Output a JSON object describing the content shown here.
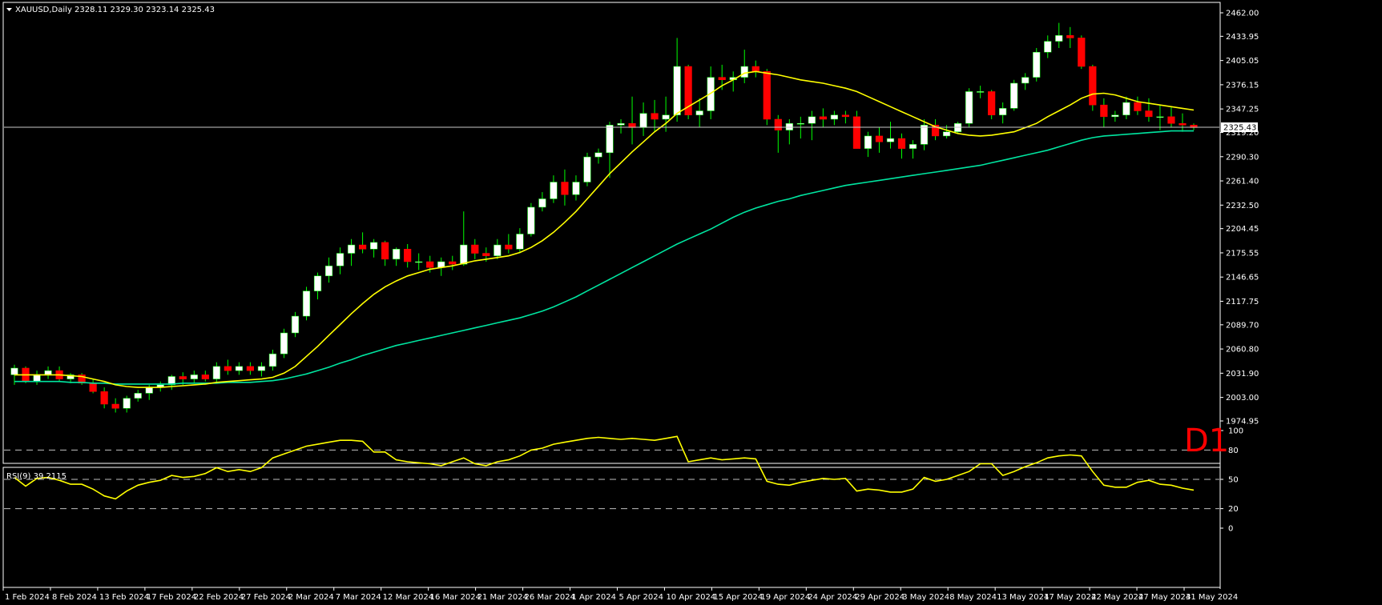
{
  "header": {
    "symbol": "XAUUSD,Daily",
    "ohlc": "2328.11 2329.30 2323.14 2325.43"
  },
  "timeframe_badge": "D1",
  "current_price_label": "2325.43",
  "colors": {
    "background": "#000000",
    "up_candle": "#ffffff",
    "down_candle": "#ff0000",
    "wick": "#00ff00",
    "ma_fast": "#ffff00",
    "ma_slow": "#00e5a0",
    "rsi": "#ffff00",
    "grid_dash": "#c0c0c0",
    "badge": "#ff0000"
  },
  "chart_data": [
    {
      "type": "candlestick",
      "title": "",
      "ylim": [
        1974.95,
        2462.0
      ],
      "yticks": [
        "2462.00",
        "2433.95",
        "2405.05",
        "2376.15",
        "2347.25",
        "2319.20",
        "2290.30",
        "2261.40",
        "2232.50",
        "2204.45",
        "2175.55",
        "2146.65",
        "2117.75",
        "2089.70",
        "2060.80",
        "2031.90",
        "2003.00",
        "1974.95"
      ],
      "xticks": [
        "1 Feb 2024",
        "8 Feb 2024",
        "13 Feb 2024",
        "17 Feb 2024",
        "22 Feb 2024",
        "27 Feb 2024",
        "2 Mar 2024",
        "7 Mar 2024",
        "12 Mar 2024",
        "16 Mar 2024",
        "21 Mar 2024",
        "26 Mar 2024",
        "1 Apr 2024",
        "5 Apr 2024",
        "10 Apr 2024",
        "15 Apr 2024",
        "19 Apr 2024",
        "24 Apr 2024",
        "29 Apr 2024",
        "3 May 2024",
        "8 May 2024",
        "13 May 2024",
        "17 May 2024",
        "22 May 2024",
        "27 May 2024",
        "31 May 2024"
      ],
      "current_price": 2325.43,
      "ohlc": [
        [
          2030,
          2042,
          2018,
          2038
        ],
        [
          2038,
          2040,
          2020,
          2022
        ],
        [
          2022,
          2035,
          2018,
          2030
        ],
        [
          2030,
          2040,
          2025,
          2035
        ],
        [
          2035,
          2040,
          2022,
          2025
        ],
        [
          2025,
          2032,
          2020,
          2030
        ],
        [
          2030,
          2032,
          2018,
          2020
        ],
        [
          2020,
          2025,
          2008,
          2010
        ],
        [
          2010,
          2015,
          1990,
          1995
        ],
        [
          1995,
          2002,
          1985,
          1990
        ],
        [
          1990,
          2005,
          1985,
          2002
        ],
        [
          2002,
          2012,
          1998,
          2008
        ],
        [
          2008,
          2018,
          2000,
          2015
        ],
        [
          2015,
          2022,
          2010,
          2018
        ],
        [
          2018,
          2030,
          2012,
          2028
        ],
        [
          2028,
          2033,
          2018,
          2025
        ],
        [
          2025,
          2035,
          2020,
          2030
        ],
        [
          2030,
          2035,
          2022,
          2025
        ],
        [
          2025,
          2045,
          2020,
          2040
        ],
        [
          2040,
          2048,
          2030,
          2035
        ],
        [
          2035,
          2045,
          2030,
          2040
        ],
        [
          2040,
          2045,
          2030,
          2035
        ],
        [
          2035,
          2045,
          2028,
          2040
        ],
        [
          2040,
          2060,
          2035,
          2055
        ],
        [
          2055,
          2085,
          2050,
          2080
        ],
        [
          2080,
          2105,
          2075,
          2100
        ],
        [
          2100,
          2135,
          2095,
          2130
        ],
        [
          2130,
          2152,
          2120,
          2148
        ],
        [
          2148,
          2170,
          2140,
          2160
        ],
        [
          2160,
          2182,
          2150,
          2175
        ],
        [
          2175,
          2192,
          2160,
          2185
        ],
        [
          2185,
          2200,
          2175,
          2180
        ],
        [
          2180,
          2192,
          2170,
          2188
        ],
        [
          2188,
          2190,
          2160,
          2168
        ],
        [
          2168,
          2182,
          2160,
          2180
        ],
        [
          2180,
          2186,
          2158,
          2165
        ],
        [
          2165,
          2175,
          2155,
          2165
        ],
        [
          2165,
          2172,
          2152,
          2158
        ],
        [
          2158,
          2170,
          2148,
          2165
        ],
        [
          2165,
          2172,
          2155,
          2162
        ],
        [
          2162,
          2225,
          2160,
          2185
        ],
        [
          2185,
          2192,
          2168,
          2175
        ],
        [
          2175,
          2182,
          2165,
          2172
        ],
        [
          2172,
          2192,
          2168,
          2185
        ],
        [
          2185,
          2198,
          2175,
          2180
        ],
        [
          2180,
          2205,
          2175,
          2198
        ],
        [
          2198,
          2235,
          2195,
          2230
        ],
        [
          2230,
          2248,
          2225,
          2240
        ],
        [
          2240,
          2268,
          2235,
          2260
        ],
        [
          2260,
          2275,
          2232,
          2245
        ],
        [
          2245,
          2268,
          2238,
          2260
        ],
        [
          2260,
          2295,
          2255,
          2290
        ],
        [
          2290,
          2300,
          2282,
          2295
        ],
        [
          2295,
          2332,
          2265,
          2328
        ],
        [
          2328,
          2335,
          2318,
          2330
        ],
        [
          2330,
          2362,
          2305,
          2325
        ],
        [
          2325,
          2355,
          2315,
          2342
        ],
        [
          2342,
          2358,
          2320,
          2335
        ],
        [
          2335,
          2362,
          2320,
          2340
        ],
        [
          2340,
          2432,
          2332,
          2398
        ],
        [
          2398,
          2400,
          2335,
          2340
        ],
        [
          2340,
          2360,
          2325,
          2345
        ],
        [
          2345,
          2398,
          2335,
          2385
        ],
        [
          2385,
          2400,
          2370,
          2382
        ],
        [
          2382,
          2392,
          2368,
          2385
        ],
        [
          2385,
          2418,
          2378,
          2398
        ],
        [
          2398,
          2405,
          2385,
          2392
        ],
        [
          2392,
          2395,
          2328,
          2335
        ],
        [
          2335,
          2340,
          2295,
          2322
        ],
        [
          2322,
          2335,
          2305,
          2330
        ],
        [
          2330,
          2338,
          2312,
          2330
        ],
        [
          2330,
          2345,
          2310,
          2338
        ],
        [
          2338,
          2348,
          2325,
          2335
        ],
        [
          2335,
          2345,
          2328,
          2340
        ],
        [
          2340,
          2345,
          2330,
          2338
        ],
        [
          2338,
          2345,
          2300,
          2300
        ],
        [
          2300,
          2320,
          2290,
          2315
        ],
        [
          2315,
          2325,
          2295,
          2308
        ],
        [
          2308,
          2332,
          2300,
          2312
        ],
        [
          2312,
          2318,
          2288,
          2300
        ],
        [
          2300,
          2310,
          2288,
          2305
        ],
        [
          2305,
          2335,
          2298,
          2328
        ],
        [
          2328,
          2335,
          2310,
          2315
        ],
        [
          2315,
          2328,
          2312,
          2320
        ],
        [
          2320,
          2332,
          2318,
          2330
        ],
        [
          2330,
          2372,
          2325,
          2368
        ],
        [
          2368,
          2375,
          2360,
          2368
        ],
        [
          2368,
          2370,
          2335,
          2340
        ],
        [
          2340,
          2355,
          2330,
          2348
        ],
        [
          2348,
          2382,
          2345,
          2378
        ],
        [
          2378,
          2390,
          2370,
          2385
        ],
        [
          2385,
          2420,
          2380,
          2415
        ],
        [
          2415,
          2435,
          2408,
          2428
        ],
        [
          2428,
          2450,
          2420,
          2435
        ],
        [
          2435,
          2445,
          2420,
          2432
        ],
        [
          2432,
          2435,
          2395,
          2398
        ],
        [
          2398,
          2400,
          2345,
          2352
        ],
        [
          2352,
          2360,
          2325,
          2338
        ],
        [
          2338,
          2345,
          2332,
          2340
        ],
        [
          2340,
          2362,
          2335,
          2355
        ],
        [
          2355,
          2362,
          2340,
          2345
        ],
        [
          2345,
          2360,
          2332,
          2338
        ],
        [
          2338,
          2352,
          2322,
          2338
        ],
        [
          2338,
          2350,
          2325,
          2330
        ],
        [
          2330,
          2342,
          2320,
          2328
        ],
        [
          2328,
          2330,
          2322,
          2325
        ]
      ],
      "ma_fast": [
        2030,
        2030,
        2030,
        2030,
        2030,
        2029,
        2028,
        2025,
        2022,
        2018,
        2016,
        2015,
        2015,
        2015,
        2016,
        2017,
        2018,
        2019,
        2021,
        2022,
        2023,
        2024,
        2025,
        2027,
        2032,
        2040,
        2052,
        2064,
        2077,
        2090,
        2103,
        2115,
        2126,
        2135,
        2142,
        2148,
        2152,
        2156,
        2158,
        2160,
        2163,
        2166,
        2168,
        2170,
        2172,
        2176,
        2182,
        2190,
        2200,
        2212,
        2225,
        2240,
        2255,
        2270,
        2283,
        2296,
        2308,
        2320,
        2330,
        2342,
        2350,
        2358,
        2366,
        2375,
        2382,
        2390,
        2392,
        2390,
        2388,
        2385,
        2382,
        2380,
        2378,
        2375,
        2372,
        2368,
        2362,
        2356,
        2350,
        2344,
        2338,
        2332,
        2326,
        2322,
        2318,
        2316,
        2315,
        2316,
        2318,
        2320,
        2325,
        2330,
        2338,
        2345,
        2352,
        2360,
        2365,
        2366,
        2364,
        2360,
        2356,
        2354,
        2352,
        2350,
        2348,
        2346
      ],
      "ma_slow": [
        2022,
        2022,
        2022,
        2022,
        2022,
        2021,
        2021,
        2020,
        2020,
        2019,
        2019,
        2019,
        2019,
        2019,
        2019,
        2020,
        2020,
        2020,
        2020,
        2021,
        2021,
        2021,
        2022,
        2023,
        2025,
        2028,
        2031,
        2035,
        2039,
        2044,
        2048,
        2053,
        2057,
        2061,
        2065,
        2068,
        2071,
        2074,
        2077,
        2080,
        2083,
        2086,
        2089,
        2092,
        2095,
        2098,
        2102,
        2106,
        2111,
        2117,
        2123,
        2130,
        2137,
        2144,
        2151,
        2158,
        2165,
        2172,
        2179,
        2186,
        2192,
        2198,
        2204,
        2211,
        2218,
        2224,
        2229,
        2233,
        2237,
        2240,
        2244,
        2247,
        2250,
        2253,
        2256,
        2258,
        2260,
        2262,
        2264,
        2266,
        2268,
        2270,
        2272,
        2274,
        2276,
        2278,
        2280,
        2283,
        2286,
        2289,
        2292,
        2295,
        2298,
        2302,
        2306,
        2310,
        2313,
        2315,
        2316,
        2317,
        2318,
        2319,
        2320,
        2321,
        2321,
        2321
      ]
    },
    {
      "type": "line",
      "title": "RSI(9) 39.2115",
      "ylim": [
        0,
        100
      ],
      "yticks": [
        "100",
        "80",
        "50",
        "20",
        "0"
      ],
      "levels": [
        80,
        50,
        20
      ],
      "values": [
        52,
        43,
        51,
        52,
        49,
        45,
        45,
        40,
        33,
        30,
        38,
        44,
        47,
        49,
        54,
        52,
        53,
        56,
        62,
        58,
        60,
        58,
        62,
        72,
        76,
        80,
        84,
        86,
        88,
        90,
        90,
        89,
        78,
        78,
        70,
        68,
        67,
        66,
        64,
        68,
        72,
        66,
        64,
        68,
        70,
        74,
        80,
        82,
        86,
        88,
        90,
        92,
        93,
        92,
        91,
        92,
        91,
        90,
        92,
        94,
        68,
        70,
        72,
        70,
        71,
        72,
        71,
        48,
        45,
        44,
        47,
        49,
        51,
        50,
        51,
        38,
        40,
        39,
        37,
        37,
        40,
        52,
        48,
        50,
        54,
        58,
        66,
        66,
        54,
        58,
        63,
        67,
        72,
        74,
        75,
        74,
        58,
        44,
        42,
        42,
        47,
        49,
        45,
        44,
        41,
        39
      ]
    }
  ]
}
